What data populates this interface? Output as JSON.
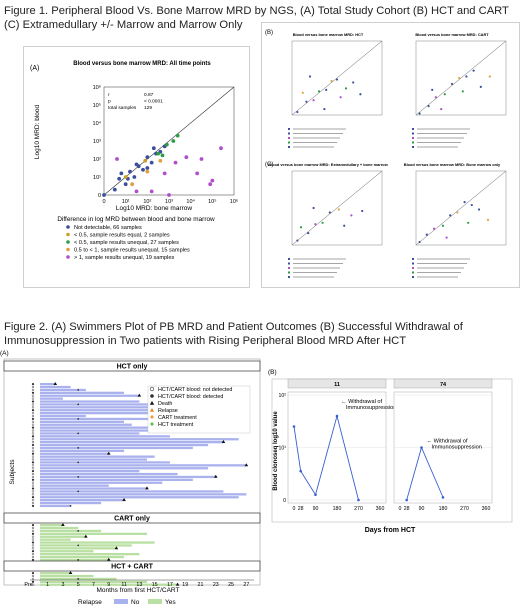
{
  "figure1": {
    "caption": "Figure 1. Peripheral Blood Vs. Bone Marrow MRD by NGS, (A) Total Study Cohort (B) HCT and CART (C) Extramedullary +/- Marrow and Marrow Only",
    "panel_a_letter": "(A)",
    "panel_b_letter": "(B)",
    "panel_c_letter": "(C)",
    "main": {
      "title": "Blood versus bone marrow MRD: All time points",
      "stats": [
        {
          "label": "r",
          "value": "0.87"
        },
        {
          "label": "p",
          "value": "< 0.0001"
        },
        {
          "label": "total samples",
          "value": "129"
        }
      ],
      "xlabel": "Log10 MRD: bone marrow",
      "ylabel": "Log10 MRD: blood",
      "ticks": [
        "0",
        "10¹",
        "10²",
        "10³",
        "10⁴",
        "10⁵",
        "10⁶"
      ],
      "legend_title": "Difference in log MRD between blood and bone marrow",
      "legend": [
        {
          "label": "Not detectable, 66 samples",
          "color": "#3c4f9e"
        },
        {
          "label": "< 0.5, sample results equal, 2 samples",
          "color": "#c8a02a"
        },
        {
          "label": "< 0.5, sample results unequal, 27 samples",
          "color": "#2e9b46"
        },
        {
          "label": "0.5 to < 1, sample results unequal, 15 samples",
          "color": "#e0a040"
        },
        {
          "label": "> 1, sample results unequal, 19 samples",
          "color": "#b04fc9"
        }
      ]
    },
    "small_panels": [
      {
        "title": "Blood versus bone marrow MRD: HCT"
      },
      {
        "title": "Blood versus bone marrow MRD: CART"
      },
      {
        "title": "Blood versus bone marrow MRD: Extramedullary + bone marrow"
      },
      {
        "title": "Blood versus bone marrow MRD: Bone marrow only"
      }
    ]
  },
  "figure2": {
    "caption": "Figure 2. (A) Swimmers Plot of PB MRD and Patient Outcomes (B) Successful Withdrawal of Immunosuppression in Two patients with Rising Peripheral Blood MRD After HCT",
    "panel_a_letter": "(A)",
    "panel_b_letter": "(B)",
    "swimmer": {
      "groups": [
        "HCT only",
        "CART only",
        "HCT + CART"
      ],
      "ylabel": "Subjects",
      "xlabel": "Months from first HCT/CART",
      "xticks": [
        "Pre",
        "1",
        "3",
        "5",
        "7",
        "9",
        "11",
        "13",
        "15",
        "17",
        "19",
        "21",
        "23",
        "25",
        "27"
      ],
      "legend": [
        {
          "label": "HCT/CART blood: not detected",
          "icon": "open-circle"
        },
        {
          "label": "HCT/CART blood: detected",
          "icon": "filled-circle"
        },
        {
          "label": "Death",
          "icon": "triangle-black"
        },
        {
          "label": "Relapse",
          "icon": "triangle-orange"
        },
        {
          "label": "CART treatment",
          "icon": "diamond-orange"
        },
        {
          "label": "HCT treatment",
          "icon": "diamond-green"
        }
      ],
      "relapse_legend": {
        "title": "Relapse",
        "no": "No",
        "yes": "Yes"
      },
      "colors": {
        "no": "#aab2ee",
        "yes": "#b9dfa2"
      }
    },
    "clonoseq": {
      "panels": [
        "11",
        "74"
      ],
      "ylabel": "Blood clonoseq log10 value",
      "xlabel": "Days from HCT",
      "xticks": [
        "0",
        "28",
        "90",
        "180",
        "270",
        "360"
      ],
      "yticks": [
        "0",
        "10¹",
        "10²"
      ],
      "annotation": "← Withdrawal of Immunosuppression"
    }
  },
  "chart_data": [
    {
      "type": "scatter",
      "title": "Blood versus bone marrow MRD: All time points",
      "xlabel": "Log10 MRD: bone marrow",
      "ylabel": "Log10 MRD: blood",
      "xlim": [
        0,
        6
      ],
      "ylim": [
        0,
        6
      ],
      "series": [
        {
          "name": "Not detectable, 66 samples",
          "color": "#3c4f9e",
          "points": [
            [
              0,
              0
            ],
            [
              0.5,
              0.3
            ],
            [
              0.7,
              0.9
            ],
            [
              1.0,
              0.6
            ],
            [
              1.2,
              1.3
            ],
            [
              1.4,
              1.0
            ],
            [
              1.6,
              1.6
            ],
            [
              1.8,
              1.4
            ],
            [
              2.0,
              2.1
            ],
            [
              2.2,
              1.8
            ],
            [
              2.4,
              2.3
            ],
            [
              2.6,
              2.4
            ],
            [
              2.0,
              1.5
            ],
            [
              1.1,
              0.9
            ],
            [
              0.8,
              1.2
            ],
            [
              1.5,
              1.7
            ],
            [
              2.3,
              2.6
            ],
            [
              2.8,
              2.7
            ]
          ]
        },
        {
          "name": "< 0.5, sample results equal, 2 samples",
          "color": "#c8a02a",
          "points": [
            [
              1.0,
              1.0
            ],
            [
              1.9,
              1.9
            ]
          ]
        },
        {
          "name": "< 0.5, sample results unequal, 27 samples",
          "color": "#2e9b46",
          "points": [
            [
              2.5,
              2.3
            ],
            [
              2.9,
              2.8
            ],
            [
              3.2,
              3.0
            ],
            [
              2.7,
              2.2
            ],
            [
              3.4,
              3.3
            ]
          ]
        },
        {
          "name": "0.5 to < 1, sample results unequal, 15 samples",
          "color": "#e0a040",
          "points": [
            [
              1.3,
              0.6
            ],
            [
              2.0,
              1.3
            ],
            [
              2.6,
              1.9
            ]
          ]
        },
        {
          "name": "> 1, sample results unequal, 19 samples",
          "color": "#b04fc9",
          "points": [
            [
              0.6,
              2.0
            ],
            [
              1.5,
              0.2
            ],
            [
              2.8,
              1.2
            ],
            [
              3.3,
              1.8
            ],
            [
              3.8,
              2.1
            ],
            [
              4.3,
              1.2
            ],
            [
              4.9,
              0.6
            ],
            [
              5.4,
              2.6
            ],
            [
              3.0,
              0.0
            ],
            [
              2.2,
              0.2
            ],
            [
              4.5,
              2.0
            ],
            [
              5.0,
              0.8
            ]
          ]
        }
      ]
    },
    {
      "type": "line",
      "title": "11",
      "xlabel": "Days from HCT",
      "ylabel": "Blood clonoseq log10 value",
      "x": [
        0,
        28,
        90,
        180,
        270
      ],
      "y": [
        1.4,
        0.55,
        0.1,
        1.6,
        0.0
      ]
    },
    {
      "type": "line",
      "title": "74",
      "xlabel": "Days from HCT",
      "ylabel": "Blood clonoseq log10 value",
      "x": [
        28,
        90,
        180
      ],
      "y": [
        0.0,
        1.0,
        0.05
      ]
    },
    {
      "type": "bar",
      "title": "Swimmers plot",
      "xlabel": "Months from first HCT/CART",
      "ylabel": "Subjects",
      "groups": [
        {
          "name": "HCT only",
          "lengths": [
            2,
            4,
            6,
            11,
            13,
            3,
            13,
            16,
            19,
            22,
            21,
            6,
            25,
            11,
            12,
            16,
            20,
            13,
            17,
            26,
            24,
            22,
            20,
            11,
            9,
            15,
            14,
            17,
            27,
            22,
            13,
            18,
            23,
            20,
            16,
            9,
            14,
            24,
            27,
            26,
            11,
            8,
            4
          ]
        },
        {
          "name": "CART only",
          "lengths": [
            3,
            5,
            8,
            14,
            6,
            4,
            15,
            12,
            10,
            7,
            13,
            11,
            9
          ]
        },
        {
          "name": "HCT + CART",
          "lengths": [
            4,
            7,
            10,
            14,
            18
          ]
        }
      ],
      "relapse": {
        "HCT only": "No",
        "CART only": "Yes",
        "HCT + CART": "Yes"
      }
    }
  ]
}
